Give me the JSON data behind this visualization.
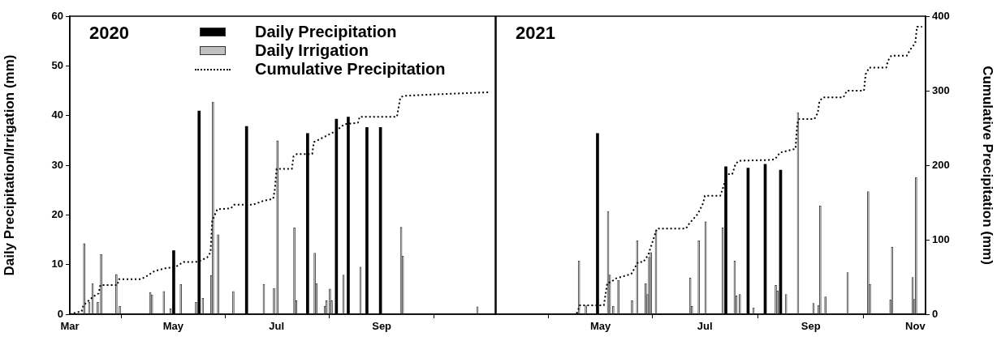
{
  "chart_data": [
    {
      "type": "bar",
      "title": "2020",
      "ylabel": "Daily Precipitation/Irrigation (mm)",
      "xlim": [
        "2020-03-01",
        "2020-11-07"
      ],
      "xticks": [
        {
          "value": "2020-03-01",
          "label": "Mar"
        },
        {
          "value": "2020-05-01",
          "label": "May"
        },
        {
          "value": "2020-07-01",
          "label": "Jul"
        },
        {
          "value": "2020-09-01",
          "label": "Sep"
        }
      ],
      "ylim": [
        0,
        60
      ],
      "yticks": [
        0,
        10,
        20,
        30,
        40,
        50,
        60
      ],
      "y2lim": [
        0,
        400
      ],
      "grid": false,
      "legend": "top",
      "series": [
        {
          "name": "Daily Precipitation",
          "color": "#000000",
          "x": [
            "2020-05-02",
            "2020-05-17",
            "2020-06-14",
            "2020-07-20",
            "2020-08-06",
            "2020-08-13",
            "2020-08-24",
            "2020-09-01"
          ],
          "values": [
            12.8,
            40.9,
            37.8,
            36.4,
            39.3,
            39.7,
            37.6,
            37.6
          ]
        },
        {
          "name": "Daily Irrigation",
          "color": "#c0c0c0",
          "x": [
            "2020-03-09",
            "2020-03-12",
            "2020-03-14",
            "2020-03-17",
            "2020-03-19",
            "2020-03-28",
            "2020-03-30",
            "2020-04-17",
            "2020-04-18",
            "2020-04-25",
            "2020-04-29",
            "2020-05-05",
            "2020-05-14",
            "2020-05-18",
            "2020-05-23",
            "2020-05-24",
            "2020-05-27",
            "2020-06-05",
            "2020-06-23",
            "2020-06-29",
            "2020-07-01",
            "2020-07-11",
            "2020-07-12",
            "2020-07-23",
            "2020-07-24",
            "2020-07-29",
            "2020-07-30",
            "2020-08-01",
            "2020-08-02",
            "2020-08-09",
            "2020-08-19",
            "2020-09-12",
            "2020-09-13",
            "2020-10-27"
          ],
          "values": [
            14.2,
            2.4,
            6.2,
            2.4,
            12,
            8,
            1.6,
            4.4,
            3.9,
            4.6,
            1.1,
            6,
            2.4,
            3.2,
            7.8,
            42.7,
            16,
            4.6,
            6,
            5.2,
            34.9,
            17.4,
            2.7,
            12.3,
            6.2,
            1.6,
            2.7,
            5.1,
            2.7,
            7.9,
            9.5,
            17.5,
            11.7,
            1.5
          ]
        },
        {
          "name": "Cumulative Precipitation",
          "type": "line",
          "axis": "y2",
          "color": "#000000",
          "line_style": "dotted",
          "marker": "none",
          "x": [
            "2020-03-01",
            "2020-03-08",
            "2020-03-09",
            "2020-03-11",
            "2020-03-13",
            "2020-03-15",
            "2020-03-18",
            "2020-03-19",
            "2020-03-29",
            "2020-03-30",
            "2020-04-12",
            "2020-04-16",
            "2020-04-20",
            "2020-04-27",
            "2020-05-02",
            "2020-05-07",
            "2020-05-14",
            "2020-05-17",
            "2020-05-21",
            "2020-05-23",
            "2020-05-24",
            "2020-05-27",
            "2020-06-04",
            "2020-06-06",
            "2020-06-17",
            "2020-06-23",
            "2020-06-29",
            "2020-06-30",
            "2020-07-01",
            "2020-07-10",
            "2020-07-11",
            "2020-07-13",
            "2020-07-22",
            "2020-07-23",
            "2020-07-30",
            "2020-08-05",
            "2020-08-10",
            "2020-08-18",
            "2020-08-19",
            "2020-09-10",
            "2020-09-12",
            "2020-09-14",
            "2020-10-02",
            "2020-11-04"
          ],
          "values": [
            0,
            4,
            12,
            16,
            20,
            24,
            28,
            39,
            39,
            47,
            47,
            52,
            58,
            62,
            63,
            70,
            70,
            72,
            76,
            83,
            125,
            141,
            142,
            147,
            147,
            152,
            155,
            168,
            195,
            195,
            212,
            215,
            215,
            231,
            239,
            246,
            255,
            257,
            265,
            265,
            291,
            293,
            295,
            298
          ]
        }
      ]
    },
    {
      "type": "bar",
      "title": "2021",
      "y2label": "Cumulative Precipitation (mm)",
      "xlim": [
        "2021-03-01",
        "2021-11-07"
      ],
      "xticks": [
        {
          "value": "2021-05-01",
          "label": "May"
        },
        {
          "value": "2021-07-01",
          "label": "Jul"
        },
        {
          "value": "2021-09-01",
          "label": "Sep"
        },
        {
          "value": "2021-11-01",
          "label": "Nov"
        }
      ],
      "ylim": [
        0,
        60
      ],
      "y2lim": [
        0,
        400
      ],
      "y2ticks": [
        0,
        100,
        200,
        300,
        400
      ],
      "grid": false,
      "series": [
        {
          "color": "#000000",
          "x": [
            "2021-04-30",
            "2021-07-14",
            "2021-07-27",
            "2021-08-06",
            "2021-08-15"
          ],
          "values": [
            36.4,
            29.7,
            29.4,
            30.2,
            29
          ]
        },
        {
          "color": "#c0c0c0",
          "x": [
            "2021-04-18",
            "2021-04-22",
            "2021-05-05",
            "2021-05-06",
            "2021-05-08",
            "2021-05-11",
            "2021-05-19",
            "2021-05-22",
            "2021-05-27",
            "2021-05-28",
            "2021-05-29",
            "2021-05-30",
            "2021-06-02",
            "2021-06-22",
            "2021-06-23",
            "2021-06-27",
            "2021-07-01",
            "2021-07-11",
            "2021-07-18",
            "2021-07-19",
            "2021-07-21",
            "2021-07-29",
            "2021-08-11",
            "2021-08-12",
            "2021-08-17",
            "2021-08-24",
            "2021-09-02",
            "2021-09-05",
            "2021-09-06",
            "2021-09-09",
            "2021-09-22",
            "2021-10-04",
            "2021-10-05",
            "2021-10-17",
            "2021-10-18",
            "2021-10-30",
            "2021-10-31",
            "2021-11-01"
          ],
          "values": [
            10.7,
            1.7,
            20.7,
            7.9,
            1.6,
            6.8,
            2.7,
            14.8,
            6.2,
            4,
            11.5,
            12.4,
            16.8,
            7.3,
            1.6,
            14.8,
            18.6,
            17.4,
            10.7,
            3.7,
            4,
            1.3,
            5.8,
            4.7,
            4,
            40.6,
            2.2,
            1.8,
            21.8,
            3.5,
            8.4,
            24.7,
            6,
            2.9,
            13.5,
            7.4,
            3,
            27.5
          ]
        },
        {
          "type": "line",
          "axis": "y2",
          "color": "#000000",
          "line_style": "dotted",
          "marker": "none",
          "x": [
            "2021-03-01",
            "2021-04-17",
            "2021-04-19",
            "2021-05-03",
            "2021-05-05",
            "2021-05-07",
            "2021-05-10",
            "2021-05-19",
            "2021-05-23",
            "2021-05-26",
            "2021-05-29",
            "2021-05-31",
            "2021-06-03",
            "2021-06-20",
            "2021-06-22",
            "2021-06-27",
            "2021-06-30",
            "2021-07-01",
            "2021-07-10",
            "2021-07-12",
            "2021-07-14",
            "2021-07-17",
            "2021-07-19",
            "2021-07-21",
            "2021-08-08",
            "2021-08-11",
            "2021-08-14",
            "2021-08-23",
            "2021-08-24",
            "2021-08-25",
            "2021-09-03",
            "2021-09-05",
            "2021-09-06",
            "2021-09-08",
            "2021-09-20",
            "2021-09-22",
            "2021-10-02",
            "2021-10-03",
            "2021-10-05",
            "2021-10-15",
            "2021-10-16",
            "2021-10-18",
            "2021-10-27",
            "2021-10-29",
            "2021-11-01",
            "2021-11-02",
            "2021-11-05"
          ],
          "values": [
            0,
            0,
            12,
            12,
            42,
            43,
            48,
            54,
            70,
            70,
            80,
            94,
            115,
            115,
            122,
            135,
            149,
            159,
            159,
            172,
            188,
            188,
            202,
            206,
            207,
            208,
            217,
            222,
            255,
            262,
            262,
            270,
            286,
            291,
            291,
            300,
            300,
            322,
            331,
            331,
            340,
            347,
            347,
            355,
            364,
            386,
            386
          ]
        }
      ]
    }
  ]
}
